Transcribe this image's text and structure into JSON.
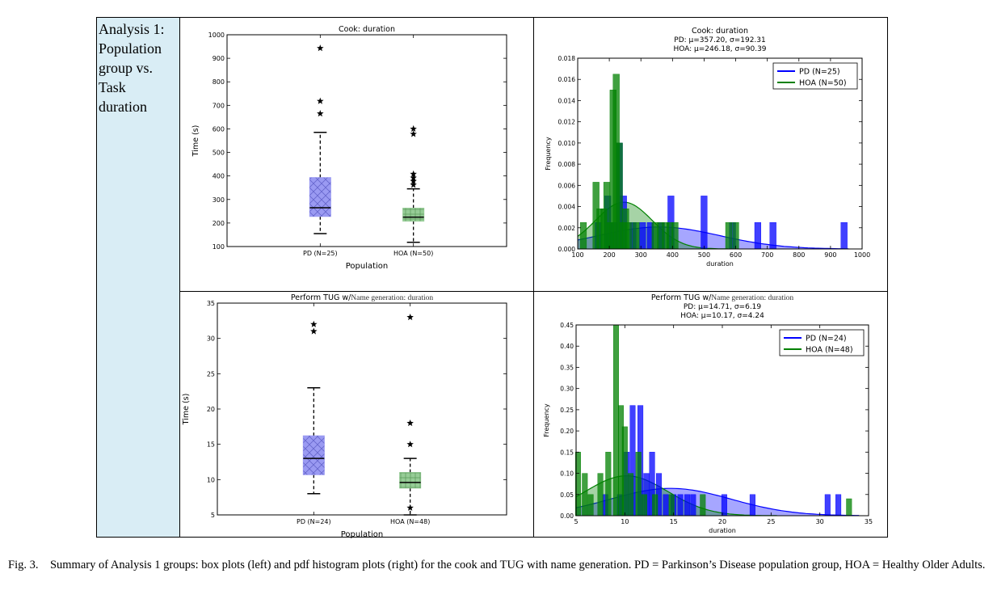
{
  "sidebar": {
    "lines": [
      "Analysis 1:",
      "Population",
      "group vs.",
      "Task",
      "duration"
    ]
  },
  "caption": {
    "label": "Fig. 3.",
    "text": "Summary of Analysis 1 groups: box plots (left) and pdf histogram plots (right) for the cook and TUG with name generation. PD = Parkinson’s Disease population group, HOA = Healthy Older Adults."
  },
  "colors": {
    "pd": "#0000ff",
    "hoa": "#008000",
    "pd_box": "#9a9af2",
    "hoa_box": "#96cc96"
  },
  "chart_data": [
    {
      "id": "cook-box",
      "type": "box",
      "title": "Cook: duration",
      "xlabel": "Population",
      "ylabel": "Time (s)",
      "ylim": [
        100,
        1000
      ],
      "yticks": [
        100,
        200,
        300,
        400,
        500,
        600,
        700,
        800,
        900,
        1000
      ],
      "groups": [
        {
          "label": "PD (N=25)",
          "min": 155,
          "q1": 228,
          "median": 265,
          "q3": 393,
          "max": 585,
          "outliers": [
            665,
            718,
            943
          ],
          "color": "#9a9af2",
          "hatch": "cross"
        },
        {
          "label": "HOA (N=50)",
          "min": 118,
          "q1": 208,
          "median": 225,
          "q3": 263,
          "max": 345,
          "outliers": [
            362,
            378,
            392,
            408,
            578,
            600
          ],
          "color": "#96cc96",
          "hatch": "grid"
        }
      ]
    },
    {
      "id": "cook-hist",
      "type": "histogram",
      "title": "Cook: duration",
      "subtitle_pd": "PD: μ=357.20, σ=192.31",
      "subtitle_hoa": "HOA: μ=246.18, σ=90.39",
      "xlabel": "duration",
      "ylabel": "Frequency",
      "xlim": [
        100,
        1000
      ],
      "ylim": [
        0,
        0.018
      ],
      "xticks": [
        100,
        200,
        300,
        400,
        500,
        600,
        700,
        800,
        900,
        1000
      ],
      "yticks": [
        "0.000",
        "0.002",
        "0.004",
        "0.006",
        "0.008",
        "0.010",
        "0.012",
        "0.014",
        "0.016",
        "0.018"
      ],
      "legend": {
        "position": "top-right",
        "entries": [
          "PD (N=25)",
          "HOA (N=50)"
        ]
      },
      "bin_width": 20,
      "series": [
        {
          "name": "PD (N=25)",
          "color": "#0000ff",
          "mean": 357.2,
          "sd": 192.31,
          "bars": [
            [
              165,
              0.0025
            ],
            [
              195,
              0.005
            ],
            [
              215,
              0.0025
            ],
            [
              232,
              0.01
            ],
            [
              245,
              0.005
            ],
            [
              275,
              0.0025
            ],
            [
              305,
              0.0025
            ],
            [
              330,
              0.0025
            ],
            [
              365,
              0.0025
            ],
            [
              395,
              0.005
            ],
            [
              500,
              0.005
            ],
            [
              590,
              0.0025
            ],
            [
              670,
              0.0025
            ],
            [
              718,
              0.0025
            ],
            [
              943,
              0.0025
            ]
          ]
        },
        {
          "name": "HOA (N=50)",
          "color": "#008000",
          "mean": 246.18,
          "sd": 90.39,
          "bars": [
            [
              118,
              0.0025
            ],
            [
              158,
              0.0063
            ],
            [
              170,
              0.0038
            ],
            [
              182,
              0.0038
            ],
            [
              192,
              0.0063
            ],
            [
              203,
              0.0025
            ],
            [
              212,
              0.015
            ],
            [
              222,
              0.0165
            ],
            [
              232,
              0.01
            ],
            [
              242,
              0.0025
            ],
            [
              252,
              0.0038
            ],
            [
              262,
              0.0025
            ],
            [
              285,
              0.0025
            ],
            [
              345,
              0.0025
            ],
            [
              362,
              0.0025
            ],
            [
              378,
              0.0025
            ],
            [
              392,
              0.0025
            ],
            [
              408,
              0.0025
            ],
            [
              578,
              0.0025
            ],
            [
              600,
              0.0025
            ]
          ]
        }
      ]
    },
    {
      "id": "tug-box",
      "type": "box",
      "title_prefix": "Perform TUG w/",
      "title_suffix": "Name generation: duration",
      "xlabel": "Population",
      "ylabel": "Time (s)",
      "ylim": [
        5,
        35
      ],
      "yticks": [
        5,
        10,
        15,
        20,
        25,
        30,
        35
      ],
      "groups": [
        {
          "label": "PD (N=24)",
          "min": 8,
          "q1": 10.7,
          "median": 13,
          "q3": 16.2,
          "max": 23,
          "outliers": [
            31,
            32
          ],
          "color": "#9a9af2",
          "hatch": "cross"
        },
        {
          "label": "HOA (N=48)",
          "min": 5,
          "q1": 8.8,
          "median": 9.6,
          "q3": 11,
          "max": 13,
          "outliers": [
            6,
            15,
            18,
            33
          ],
          "color": "#96cc96",
          "hatch": "grid"
        }
      ]
    },
    {
      "id": "tug-hist",
      "type": "histogram",
      "title_prefix": "Perform TUG w/",
      "title_suffix": "Name generation: duration",
      "subtitle_pd": "PD: μ=14.71, σ=6.19",
      "subtitle_hoa": "HOA: μ=10.17, σ=4.24",
      "xlabel": "duration",
      "ylabel": "Frequency",
      "xlim": [
        5,
        35
      ],
      "ylim": [
        0,
        0.45
      ],
      "xticks": [
        5,
        10,
        15,
        20,
        25,
        30,
        35
      ],
      "yticks": [
        "0.00",
        "0.05",
        "0.10",
        "0.15",
        "0.20",
        "0.25",
        "0.30",
        "0.35",
        "0.40",
        "0.45"
      ],
      "legend": {
        "position": "top-right",
        "entries": [
          "PD (N=24)",
          "HOA (N=48)"
        ]
      },
      "bin_width": 0.55,
      "series": [
        {
          "name": "PD (N=24)",
          "color": "#0000ff",
          "mean": 14.71,
          "sd": 6.19,
          "bars": [
            [
              8.0,
              0.05
            ],
            [
              9.5,
              0.05
            ],
            [
              10.2,
              0.15
            ],
            [
              10.8,
              0.26
            ],
            [
              11.6,
              0.26
            ],
            [
              12.2,
              0.1
            ],
            [
              12.8,
              0.15
            ],
            [
              13.5,
              0.1
            ],
            [
              14.2,
              0.05
            ],
            [
              15.0,
              0.05
            ],
            [
              15.7,
              0.05
            ],
            [
              16.4,
              0.05
            ],
            [
              17.0,
              0.05
            ],
            [
              20.2,
              0.05
            ],
            [
              23.1,
              0.05
            ],
            [
              30.8,
              0.05
            ],
            [
              31.9,
              0.05
            ]
          ]
        },
        {
          "name": "HOA (N=48)",
          "color": "#008000",
          "mean": 10.17,
          "sd": 4.24,
          "bars": [
            [
              5.2,
              0.15
            ],
            [
              5.9,
              0.1
            ],
            [
              6.5,
              0.05
            ],
            [
              7.5,
              0.1
            ],
            [
              8.3,
              0.15
            ],
            [
              9.1,
              0.45
            ],
            [
              9.6,
              0.26
            ],
            [
              10.0,
              0.21
            ],
            [
              10.6,
              0.1
            ],
            [
              11.4,
              0.15
            ],
            [
              12.0,
              0.05
            ],
            [
              13.1,
              0.05
            ],
            [
              14.8,
              0.05
            ],
            [
              18.0,
              0.05
            ],
            [
              33.0,
              0.04
            ]
          ]
        }
      ]
    }
  ]
}
